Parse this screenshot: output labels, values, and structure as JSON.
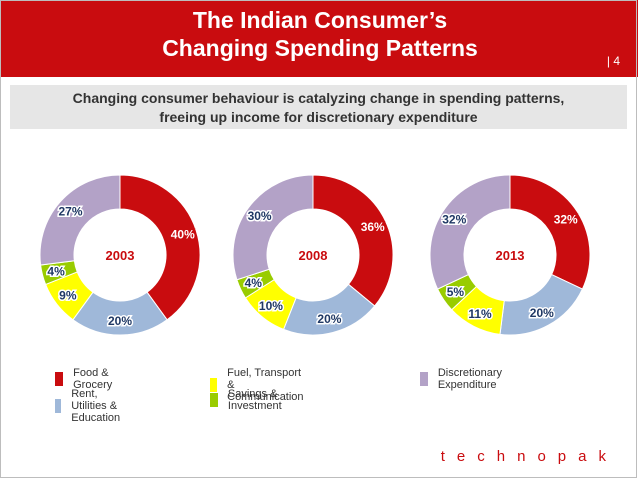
{
  "header": {
    "title_line1": "The Indian Consumer’s",
    "title_line2": "Changing Spending Patterns",
    "page_number": "| 4"
  },
  "subtitle": {
    "line1": "Changing consumer behaviour is catalyzing change in spending patterns,",
    "line2": "freeing up income for discretionary expenditure"
  },
  "chart_data": [
    {
      "type": "pie",
      "title": "2003",
      "categories": [
        "Food & Grocery",
        "Rent, Utilities & Education",
        "Fuel, Transport & Communication",
        "Savings & Investment",
        "Discretionary Expenditure"
      ],
      "values": [
        40,
        20,
        9,
        4,
        27
      ],
      "labels": [
        "40%",
        "20%",
        "9%",
        "4%",
        "27%"
      ]
    },
    {
      "type": "pie",
      "title": "2008",
      "categories": [
        "Food & Grocery",
        "Rent, Utilities & Education",
        "Fuel, Transport & Communication",
        "Savings & Investment",
        "Discretionary Expenditure"
      ],
      "values": [
        36,
        20,
        10,
        4,
        30
      ],
      "labels": [
        "36%",
        "20%",
        "10%",
        "4%",
        "30%"
      ]
    },
    {
      "type": "pie",
      "title": "2013",
      "categories": [
        "Food & Grocery",
        "Rent, Utilities & Education",
        "Fuel, Transport & Communication",
        "Savings & Investment",
        "Discretionary Expenditure"
      ],
      "values": [
        32,
        20,
        11,
        5,
        32
      ],
      "labels": [
        "32%",
        "20%",
        "11%",
        "5%",
        "32%"
      ]
    }
  ],
  "colors": {
    "Food & Grocery": "#c90c0f",
    "Rent, Utilities & Education": "#9fb8d9",
    "Fuel, Transport & Communication": "#ffff00",
    "Savings & Investment": "#99cc00",
    "Discretionary Expenditure": "#b3a2c7",
    "label_primary": "#c90c0f",
    "label_secondary": "#1f3864"
  },
  "legend": {
    "items": [
      "Food & Grocery",
      "Fuel, Transport & Communication",
      "Discretionary Expenditure",
      "Rent, Utilities & Education",
      "Savings & Investment"
    ]
  },
  "brand": "technopak"
}
